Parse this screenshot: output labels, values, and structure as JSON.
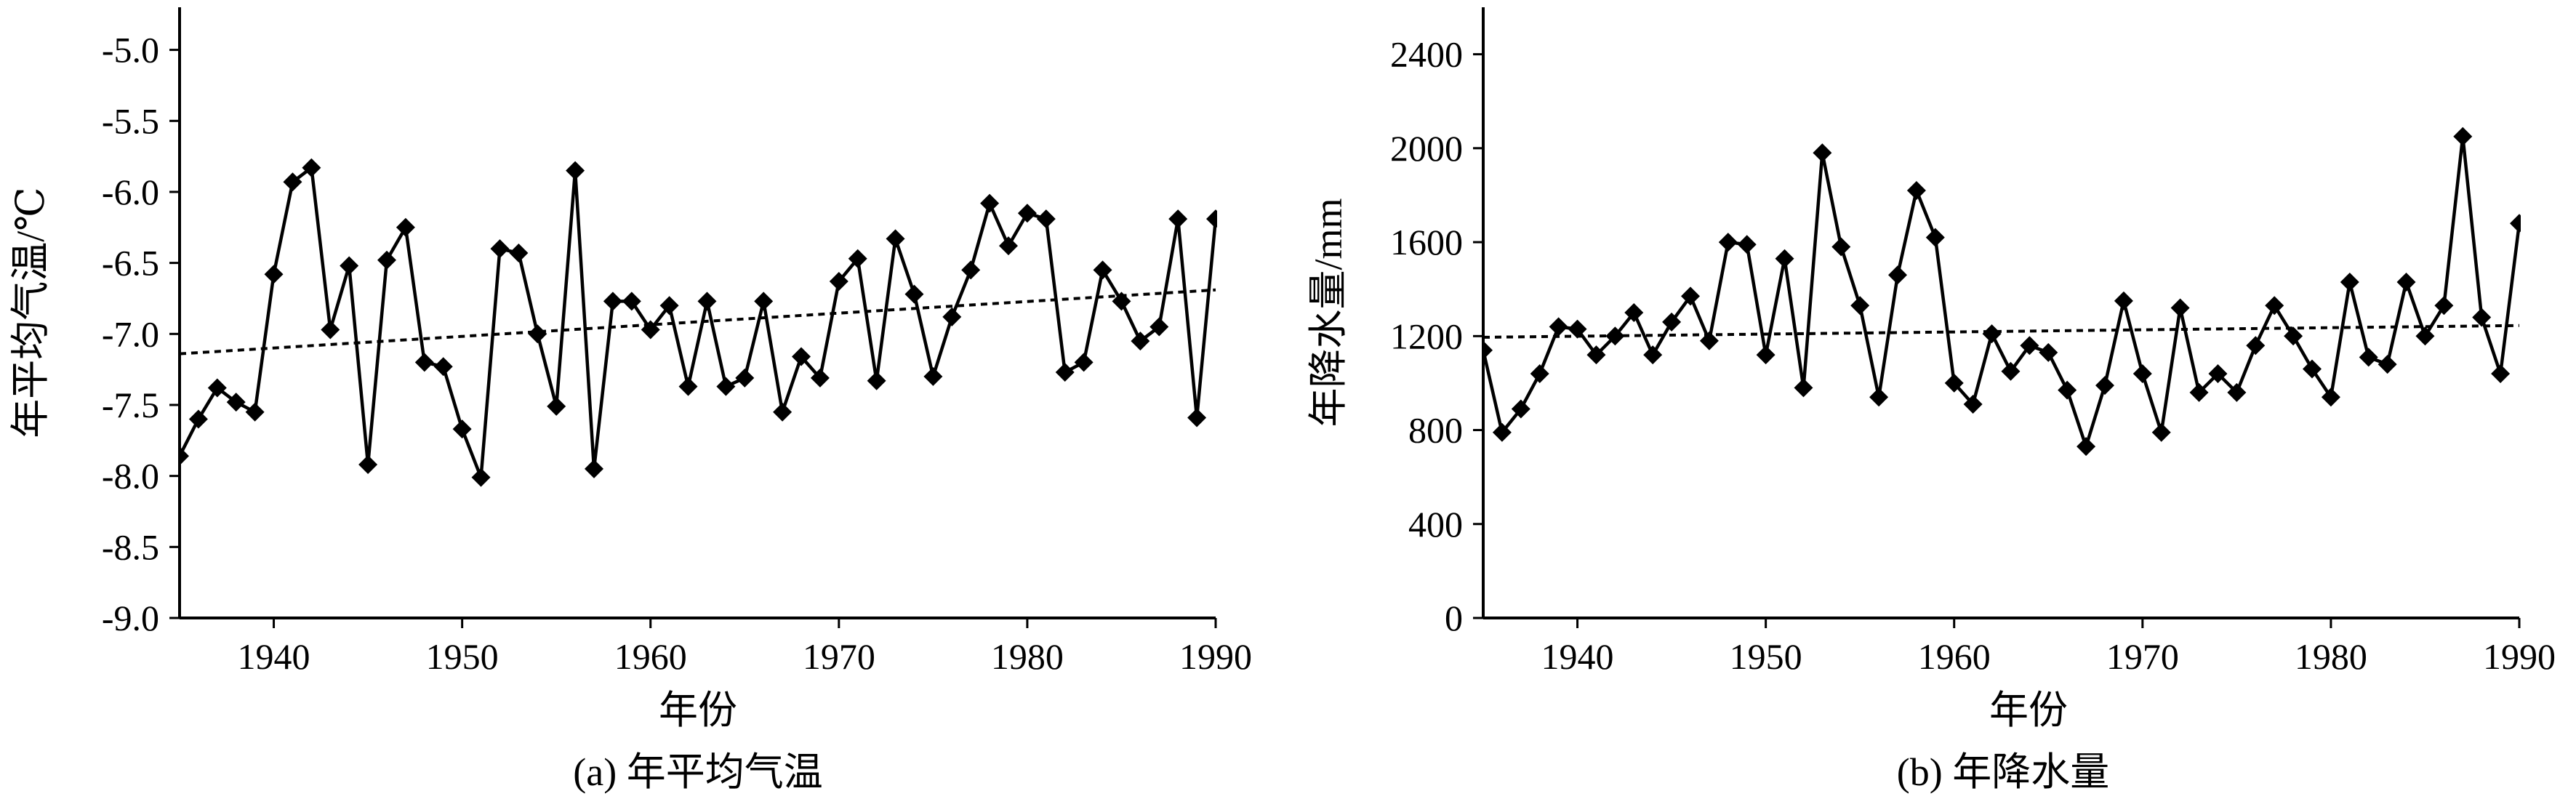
{
  "chart_data": [
    {
      "id": "a",
      "type": "line",
      "title": "(a) 年平均气温",
      "xlabel": "年份",
      "ylabel": "年平均气温/℃",
      "xlim": [
        1935,
        1990
      ],
      "ylim": [
        -9.0,
        -4.7
      ],
      "xticks": [
        1940,
        1950,
        1960,
        1970,
        1980,
        1990
      ],
      "yticks": [
        -9.0,
        -8.5,
        -8.0,
        -7.5,
        -7.0,
        -6.5,
        -6.0,
        -5.5,
        -5.0
      ],
      "ytick_labels": [
        "-9.0",
        "-8.5",
        "-8.0",
        "-7.5",
        "-7.0",
        "-6.5",
        "-6.0",
        "-5.5",
        "-5.0"
      ],
      "grid": false,
      "series": [
        {
          "marker": "diamond",
          "color": "#000000",
          "x": [
            1935,
            1936,
            1937,
            1938,
            1939,
            1940,
            1941,
            1942,
            1943,
            1944,
            1945,
            1946,
            1947,
            1948,
            1949,
            1950,
            1951,
            1952,
            1953,
            1954,
            1955,
            1956,
            1957,
            1958,
            1959,
            1960,
            1961,
            1962,
            1963,
            1964,
            1965,
            1966,
            1967,
            1968,
            1969,
            1970,
            1971,
            1972,
            1973,
            1974,
            1975,
            1976,
            1977,
            1978,
            1979,
            1980,
            1981,
            1982,
            1983,
            1984,
            1985,
            1986,
            1987,
            1988,
            1989,
            1990
          ],
          "y": [
            -7.86,
            -7.6,
            -7.38,
            -7.48,
            -7.55,
            -6.58,
            -5.93,
            -5.83,
            -6.97,
            -6.52,
            -7.92,
            -6.48,
            -6.25,
            -7.2,
            -7.23,
            -7.67,
            -8.01,
            -6.4,
            -6.43,
            -7.0,
            -7.51,
            -5.85,
            -7.95,
            -6.77,
            -6.77,
            -6.97,
            -6.8,
            -7.37,
            -6.77,
            -7.37,
            -7.31,
            -6.77,
            -7.55,
            -7.16,
            -7.31,
            -6.63,
            -6.47,
            -7.33,
            -6.33,
            -6.72,
            -7.3,
            -6.88,
            -6.55,
            -6.08,
            -6.38,
            -6.15,
            -6.19,
            -7.27,
            -7.2,
            -6.55,
            -6.77,
            -7.05,
            -6.95,
            -6.19,
            -7.59,
            -6.19
          ]
        }
      ],
      "trend": {
        "style": "dotted",
        "x": [
          1935,
          1990
        ],
        "y": [
          -7.14,
          -6.69
        ]
      }
    },
    {
      "id": "b",
      "type": "line",
      "title": "(b) 年降水量",
      "xlabel": "年份",
      "ylabel": "年降水量/mm",
      "xlim": [
        1935,
        1990
      ],
      "ylim": [
        0,
        2600
      ],
      "xticks": [
        1940,
        1950,
        1960,
        1970,
        1980,
        1990
      ],
      "yticks": [
        0,
        400,
        800,
        1200,
        1600,
        2000,
        2400
      ],
      "ytick_labels": [
        "0",
        "400",
        "800",
        "1200",
        "1600",
        "2000",
        "2400"
      ],
      "grid": false,
      "series": [
        {
          "marker": "diamond",
          "color": "#000000",
          "x": [
            1935,
            1936,
            1937,
            1938,
            1939,
            1940,
            1941,
            1942,
            1943,
            1944,
            1945,
            1946,
            1947,
            1948,
            1949,
            1950,
            1951,
            1952,
            1953,
            1954,
            1955,
            1956,
            1957,
            1958,
            1959,
            1960,
            1961,
            1962,
            1963,
            1964,
            1965,
            1966,
            1967,
            1968,
            1969,
            1970,
            1971,
            1972,
            1973,
            1974,
            1975,
            1976,
            1977,
            1978,
            1979,
            1980,
            1981,
            1982,
            1983,
            1984,
            1985,
            1986,
            1987,
            1988,
            1989,
            1990
          ],
          "y": [
            1140,
            790,
            890,
            1040,
            1240,
            1230,
            1120,
            1200,
            1300,
            1120,
            1260,
            1370,
            1180,
            1600,
            1590,
            1120,
            1530,
            980,
            1980,
            1580,
            1330,
            940,
            1460,
            1820,
            1620,
            1000,
            910,
            1210,
            1050,
            1160,
            1130,
            970,
            730,
            990,
            1350,
            1040,
            790,
            1320,
            960,
            1040,
            960,
            1160,
            1330,
            1200,
            1060,
            940,
            1430,
            1110,
            1080,
            1430,
            1200,
            1330,
            2050,
            1280,
            1040,
            1680
          ]
        }
      ],
      "trend": {
        "style": "dotted",
        "x": [
          1935,
          1990
        ],
        "y": [
          1195,
          1245
        ]
      }
    }
  ]
}
